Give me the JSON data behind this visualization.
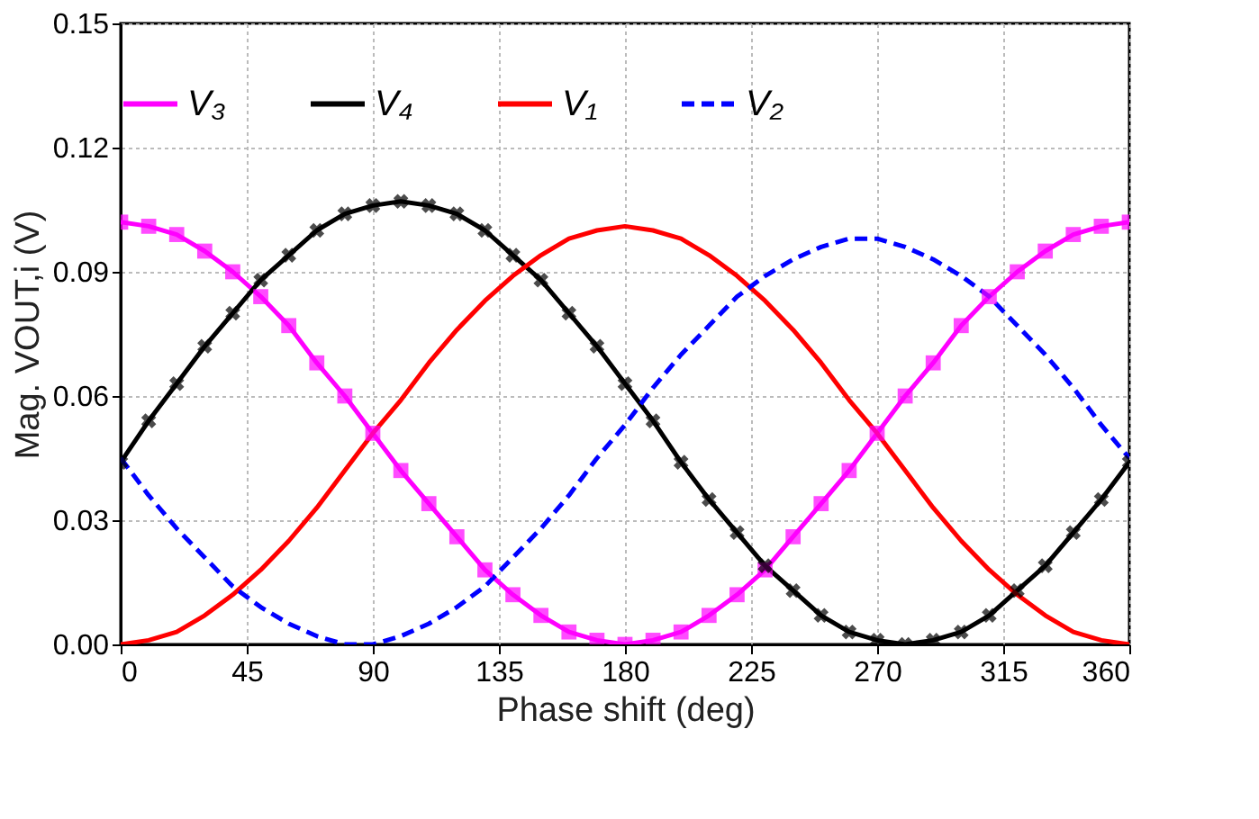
{
  "chart_data": {
    "type": "line",
    "xlabel": "Phase shift (deg)",
    "ylabel": "Mag. VOUT,i (V)",
    "x": [
      0,
      10,
      20,
      30,
      40,
      50,
      60,
      70,
      80,
      90,
      100,
      110,
      120,
      130,
      140,
      150,
      160,
      170,
      180,
      190,
      200,
      210,
      220,
      230,
      240,
      250,
      260,
      270,
      280,
      290,
      300,
      310,
      320,
      330,
      340,
      350,
      360
    ],
    "series": [
      {
        "name": "V₃",
        "color": "#ff00ff",
        "marker": "square",
        "line_style": "solid",
        "values": [
          0.102,
          0.101,
          0.099,
          0.095,
          0.09,
          0.084,
          0.077,
          0.068,
          0.06,
          0.051,
          0.042,
          0.034,
          0.026,
          0.018,
          0.012,
          0.007,
          0.003,
          0.001,
          0,
          0.001,
          0.003,
          0.007,
          0.012,
          0.018,
          0.026,
          0.034,
          0.042,
          0.051,
          0.06,
          0.068,
          0.077,
          0.084,
          0.09,
          0.095,
          0.099,
          0.101,
          0.102
        ]
      },
      {
        "name": "V₄",
        "color": "#000000",
        "marker": "cross",
        "line_style": "solid",
        "values": [
          0.044,
          0.054,
          0.063,
          0.072,
          0.08,
          0.088,
          0.094,
          0.1,
          0.104,
          0.106,
          0.107,
          0.106,
          0.104,
          0.1,
          0.094,
          0.088,
          0.08,
          0.072,
          0.063,
          0.054,
          0.044,
          0.035,
          0.027,
          0.019,
          0.013,
          0.007,
          0.003,
          0.001,
          0,
          0.001,
          0.003,
          0.007,
          0.013,
          0.019,
          0.027,
          0.035,
          0.044
        ]
      },
      {
        "name": "V₁",
        "color": "#ff0000",
        "marker": "none",
        "line_style": "solid",
        "values": [
          0,
          0.001,
          0.003,
          0.007,
          0.012,
          0.018,
          0.025,
          0.033,
          0.042,
          0.051,
          0.059,
          0.068,
          0.076,
          0.083,
          0.089,
          0.094,
          0.098,
          0.1,
          0.101,
          0.1,
          0.098,
          0.094,
          0.089,
          0.083,
          0.076,
          0.068,
          0.059,
          0.051,
          0.042,
          0.033,
          0.025,
          0.018,
          0.012,
          0.007,
          0.003,
          0.001,
          0
        ]
      },
      {
        "name": "V₂",
        "color": "#0000ff",
        "marker": "none",
        "line_style": "dashed",
        "values": [
          0.045,
          0.036,
          0.028,
          0.021,
          0.014,
          0.009,
          0.005,
          0.002,
          0,
          0,
          0.002,
          0.005,
          0.009,
          0.014,
          0.021,
          0.028,
          0.036,
          0.045,
          0.053,
          0.062,
          0.07,
          0.077,
          0.084,
          0.089,
          0.093,
          0.096,
          0.098,
          0.098,
          0.096,
          0.093,
          0.089,
          0.084,
          0.077,
          0.07,
          0.062,
          0.053,
          0.045
        ]
      }
    ],
    "xlim": [
      0,
      360
    ],
    "xticks": [
      0,
      45,
      90,
      135,
      180,
      225,
      270,
      315,
      360
    ],
    "ylim": [
      0,
      0.15
    ],
    "yticks": [
      {
        "value": 0,
        "label": "0.00"
      },
      0.03,
      0.06,
      0.09,
      0.12,
      0.15
    ],
    "grid": true,
    "legend": "top"
  }
}
